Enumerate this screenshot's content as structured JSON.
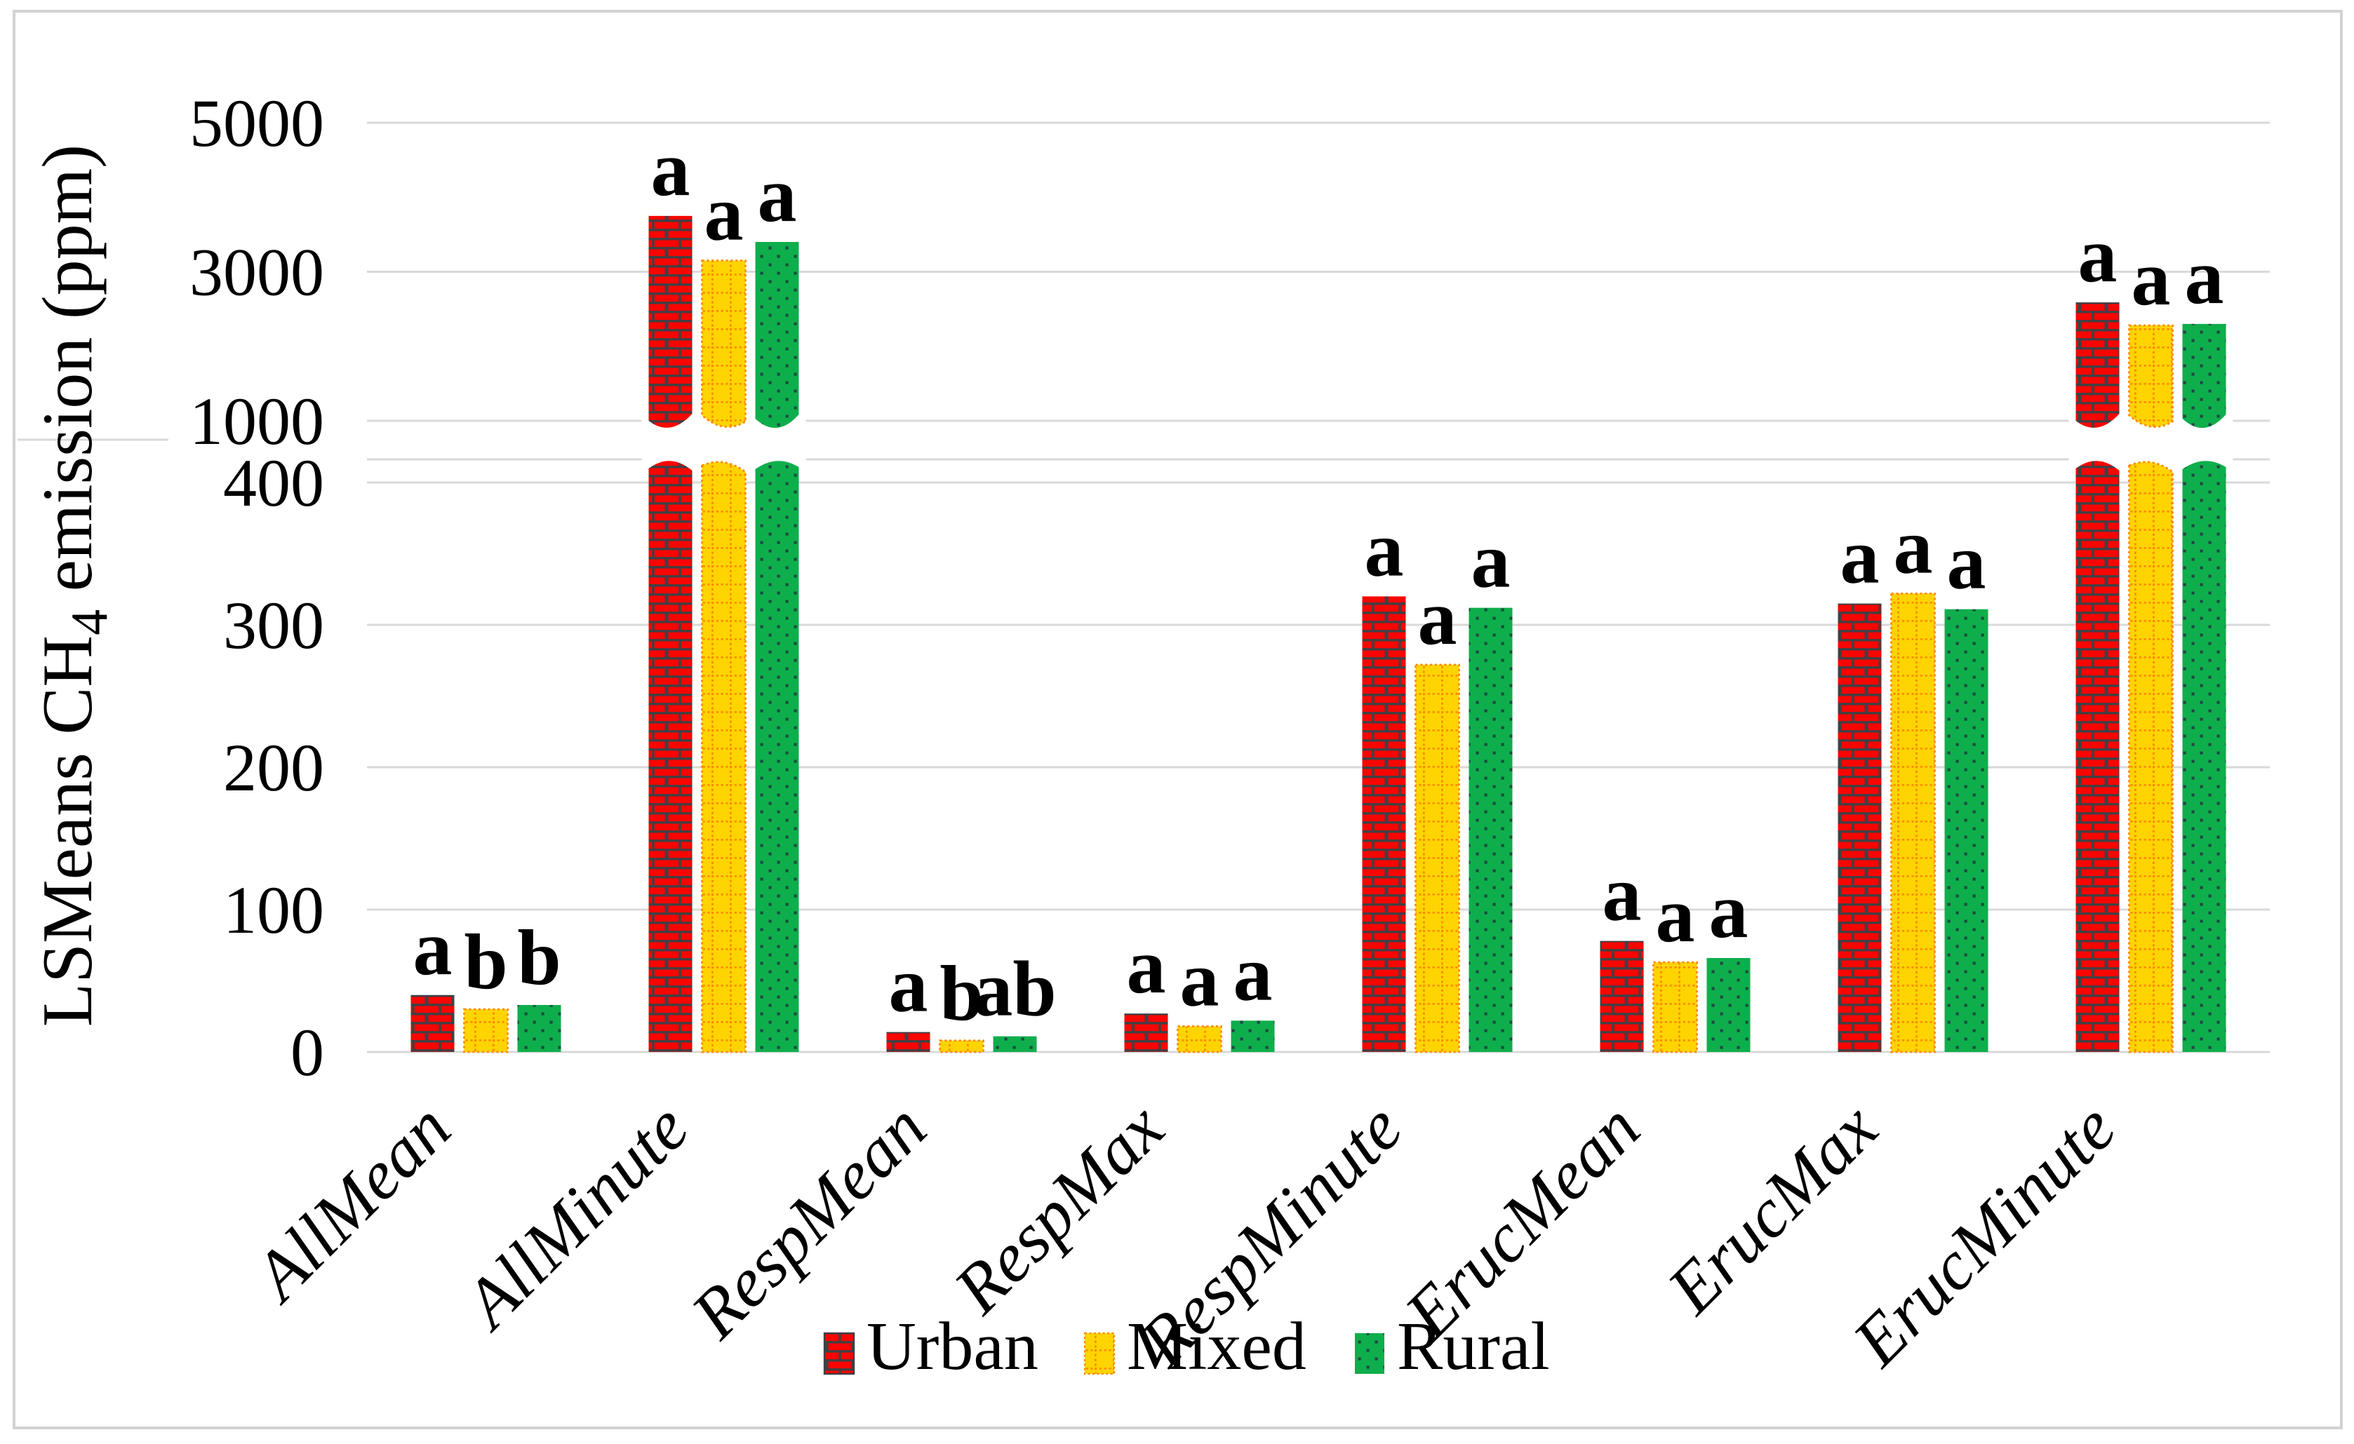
{
  "figure": {
    "background_color": "#ffffff",
    "border_color": "#d2d2d2"
  },
  "chart_data": {
    "type": "bar",
    "title": "",
    "ylabel": "LSMeans CH4 emission (ppm)",
    "ylabel_parts": [
      "LSMeans CH",
      "4",
      " emission (ppm)"
    ],
    "xlabel": "",
    "categories": [
      "AllMean",
      "AllMinute",
      "RespMean",
      "RespMax",
      "RespMinute",
      "ErucMean",
      "ErucMax",
      "ErucMinute"
    ],
    "series": [
      {
        "name": "Urban",
        "pattern": "brick",
        "fill_color": "#f90500",
        "pattern_color": "#3f4045",
        "values": [
          40,
          3750,
          14,
          27,
          320,
          78,
          315,
          2590
        ],
        "letters": [
          "a",
          "a",
          "a",
          "a",
          "a",
          "a",
          "a",
          "a"
        ]
      },
      {
        "name": "Mixed",
        "pattern": "grid",
        "fill_color": "#ffd400",
        "pattern_color": "#ff8c00",
        "values": [
          30,
          3150,
          8,
          18,
          272,
          63,
          322,
          2280
        ],
        "letters": [
          "b",
          "a",
          "b",
          "a",
          "a",
          "a",
          "a",
          "a"
        ]
      },
      {
        "name": "Rural",
        "pattern": "dots",
        "fill_color": "#0fae4c",
        "pattern_color": "#1d4a40",
        "values": [
          33,
          3400,
          11,
          22,
          312,
          66,
          311,
          2300
        ],
        "letters": [
          "b",
          "a",
          "ab",
          "a",
          "a",
          "a",
          "a",
          "a"
        ]
      }
    ],
    "y_axis": {
      "lower_ticks": [
        0,
        100,
        200,
        300,
        400
      ],
      "upper_ticks": [
        1000,
        3000,
        5000
      ],
      "axis_break": true,
      "break_between": [
        400,
        1000
      ],
      "ylim_lower": [
        0,
        430
      ],
      "ylim_upper": [
        1000,
        5100
      ]
    },
    "grid": true,
    "gridline_color": "#d9d9d9",
    "legend_position": "bottom",
    "legend_labels": [
      "Urban",
      "Mixed",
      "Rural"
    ]
  }
}
